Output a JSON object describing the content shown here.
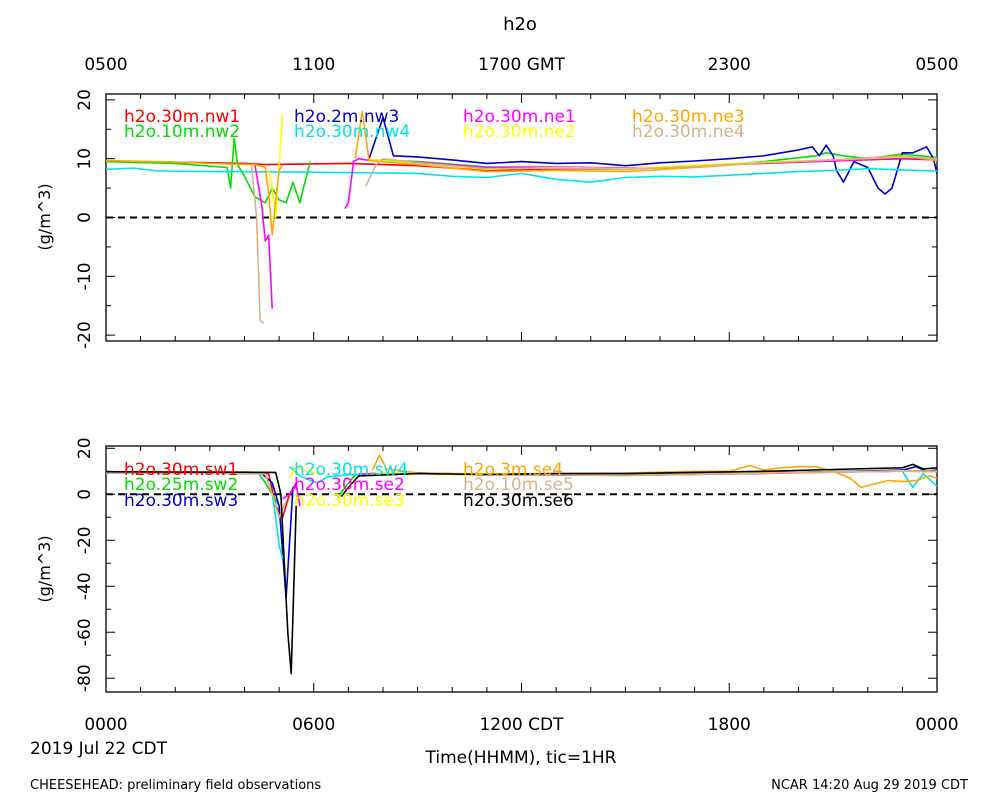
{
  "figure": {
    "title": "h2o",
    "date_label": "2019 Jul 22 CDT",
    "footer_left": "CHEESEHEAD: preliminary field observations",
    "footer_right": "NCAR 14:20 Aug 29 2019 CDT",
    "xlabel": "Time(HHMM), tic=1HR",
    "top_axis": {
      "ticks": [
        {
          "hour": 0,
          "label": "0500"
        },
        {
          "hour": 6,
          "label": "1100"
        },
        {
          "hour": 12,
          "label": "1700 GMT"
        },
        {
          "hour": 18,
          "label": "2300"
        },
        {
          "hour": 24,
          "label": "0500"
        }
      ]
    },
    "bottom_axis": {
      "ticks": [
        {
          "hour": 0,
          "label": "0000"
        },
        {
          "hour": 6,
          "label": "0600"
        },
        {
          "hour": 12,
          "label": "1200 CDT"
        },
        {
          "hour": 18,
          "label": "1800"
        },
        {
          "hour": 24,
          "label": "0000"
        }
      ]
    }
  },
  "chart_data": [
    {
      "type": "line",
      "xlim": [
        0,
        24
      ],
      "ylim": [
        -21,
        21
      ],
      "yticks": [
        20,
        10,
        0,
        -10,
        -20
      ],
      "ylabel": "(g/m^3)",
      "zero_line": true,
      "series": [
        {
          "name": "h2o.30m.nw1",
          "color": "#ff0000",
          "x": [
            0,
            2,
            4,
            4.6,
            7,
            9,
            11,
            13,
            15,
            17,
            19,
            21,
            23,
            24
          ],
          "y": [
            9.6,
            9.4,
            9.2,
            9,
            9.2,
            8.8,
            8,
            8.3,
            8.2,
            8.8,
            9.2,
            9.6,
            10,
            9.8
          ]
        },
        {
          "name": "h2o.10m.nw2",
          "color": "#00dd00",
          "x": [
            0,
            2,
            3.5,
            3.6,
            3.7,
            3.8,
            4,
            4.3,
            4.6,
            4.8,
            5,
            5.2,
            5.4,
            5.6,
            5.7,
            5.9
          ],
          "y": [
            9.5,
            9.2,
            8.5,
            5,
            13.5,
            9,
            7,
            3.5,
            2.5,
            5,
            3,
            2.5,
            6,
            2.5,
            5,
            9.5
          ]
        },
        {
          "name": "h2o.10m.nw2",
          "color": "#00dd00",
          "x": [
            7.6,
            9,
            11,
            13,
            15,
            17,
            19,
            20.5,
            20.8,
            21.3,
            22,
            23,
            24
          ],
          "y": [
            9.8,
            9.5,
            8.6,
            8.5,
            8.3,
            8.6,
            9.5,
            10.5,
            11,
            10.5,
            10,
            10.8,
            10.2
          ]
        },
        {
          "name": "h2o.2m.nw3",
          "color": "#0000cc",
          "x": [
            7.6,
            8,
            8.3,
            9,
            10,
            11,
            12,
            13,
            14,
            15,
            16,
            17,
            18,
            19,
            20,
            20.4,
            20.6,
            20.8,
            21,
            21.1,
            21.3,
            21.6,
            22,
            22.3,
            22.5,
            22.7,
            23,
            23.3,
            23.7,
            23.9,
            24
          ],
          "y": [
            10,
            17,
            10.5,
            10.3,
            9.8,
            9.2,
            9.5,
            9.2,
            9.3,
            8.8,
            9.3,
            9.6,
            10,
            10.5,
            11.5,
            12,
            10.5,
            12.3,
            10.5,
            8,
            6,
            9.5,
            8.5,
            5,
            4,
            5,
            11,
            11,
            12,
            10,
            7.5
          ]
        },
        {
          "name": "h2o.30m.nw4",
          "color": "#00e5e5",
          "x": [
            0,
            0.8,
            1.5,
            3,
            6,
            9,
            10,
            11,
            12,
            13,
            14,
            15,
            16,
            17,
            18,
            19,
            20,
            21,
            22,
            23,
            24
          ],
          "y": [
            8.2,
            8.4,
            7.9,
            7.8,
            7.7,
            7.5,
            7,
            6.8,
            7.5,
            6.5,
            6,
            6.8,
            7,
            6.9,
            7.2,
            7.5,
            7.8,
            8,
            8.3,
            8.1,
            7.9
          ]
        },
        {
          "name": "h2o.30m.ne1",
          "color": "#ff00ff",
          "x": [
            4.3,
            4.5,
            4.6,
            4.7,
            4.8
          ],
          "y": [
            9,
            2,
            -4,
            -3,
            -15.5
          ]
        },
        {
          "name": "h2o.30m.ne1",
          "color": "#ff00ff",
          "x": [
            6.9,
            7,
            7.15,
            7.3,
            7.5,
            9,
            11,
            13,
            15,
            17,
            19,
            21,
            23,
            24
          ],
          "y": [
            1.5,
            2.5,
            9.5,
            10,
            9.8,
            9.4,
            8.5,
            8.6,
            8.4,
            8.7,
            9.3,
            9.6,
            10.1,
            9.9
          ]
        },
        {
          "name": "h2o.30m.ne2",
          "color": "#ffff00",
          "x": [
            4.7,
            4.8,
            4.9,
            5,
            5.1
          ],
          "y": [
            8,
            5,
            0,
            9,
            17.5
          ]
        },
        {
          "name": "h2o.30m.ne2",
          "color": "#ffff00",
          "x": [
            7.6,
            9,
            11,
            13,
            15,
            17,
            19,
            21,
            23,
            24
          ],
          "y": [
            9.8,
            9.3,
            8.2,
            8.5,
            8.3,
            8.9,
            9.4,
            9.8,
            10.3,
            10
          ]
        },
        {
          "name": "h2o.30m.ne3",
          "color": "#ffa500",
          "x": [
            0,
            2,
            3.5,
            4.3,
            4.6,
            4.7,
            4.8,
            4.9,
            5,
            5.1
          ],
          "y": [
            9.7,
            9.4,
            9.1,
            9,
            8.5,
            4,
            -3,
            3,
            8,
            9
          ]
        },
        {
          "name": "h2o.30m.ne3",
          "color": "#ffa500",
          "x": [
            7.2,
            7.4,
            7.6,
            9,
            11,
            13,
            15,
            17,
            19,
            21,
            23,
            24
          ],
          "y": [
            10,
            18,
            9.7,
            9,
            7.8,
            8,
            7.8,
            8.5,
            9.3,
            9.8,
            10.5,
            9.7
          ]
        },
        {
          "name": "h2o.30m.ne4",
          "color": "#d2b48c",
          "x": [
            4.2,
            4.35,
            4.45,
            4.55
          ],
          "y": [
            9,
            0,
            -17.5,
            -18
          ]
        },
        {
          "name": "h2o.30m.ne4",
          "color": "#d2b48c",
          "x": [
            7.5,
            7.8,
            8,
            9,
            11,
            13,
            15,
            17,
            19,
            21,
            23,
            24
          ],
          "y": [
            5.3,
            9,
            10,
            9.3,
            8.3,
            8.4,
            8.2,
            8.7,
            9.3,
            9.8,
            10.4,
            10
          ]
        }
      ]
    },
    {
      "type": "line",
      "xlim": [
        0,
        24
      ],
      "ylim": [
        -86,
        21
      ],
      "yticks": [
        20,
        0,
        -20,
        -40,
        -60,
        -80
      ],
      "ylabel": "(g/m^3)",
      "zero_line": true,
      "series": [
        {
          "name": "h2o.30m.sw1",
          "color": "#ff0000",
          "x": [
            0,
            2,
            4,
            4.7,
            4.9,
            5.1,
            5.3,
            5.5
          ],
          "y": [
            9.6,
            9.5,
            9.3,
            9,
            -5,
            -10,
            0,
            5
          ]
        },
        {
          "name": "h2o.30m.sw1",
          "color": "#ff0000",
          "x": [
            7.6,
            9,
            11,
            13,
            15,
            17,
            19,
            21,
            23,
            24
          ],
          "y": [
            9,
            9.3,
            8.5,
            8.5,
            8.3,
            8.8,
            9.3,
            9.8,
            10.3,
            10
          ]
        },
        {
          "name": "h2o.25m.sw2",
          "color": "#00dd00",
          "x": [
            0,
            2,
            4.4,
            4.6,
            4.8,
            5
          ],
          "y": [
            9.4,
            9.3,
            9.1,
            5,
            0,
            -5
          ]
        },
        {
          "name": "h2o.25m.sw2",
          "color": "#00dd00",
          "x": [
            6.7,
            6.9,
            7.2,
            9,
            11,
            13,
            15,
            17,
            19,
            21,
            23,
            24
          ],
          "y": [
            -1.5,
            3,
            8.5,
            9.1,
            8.3,
            8.4,
            8.2,
            8.7,
            9.2,
            9.7,
            10.2,
            9.9
          ]
        },
        {
          "name": "h2o.30m.sw3",
          "color": "#0000cc",
          "x": [
            0,
            2,
            4.5,
            4.8,
            5,
            5.2,
            5.4
          ],
          "y": [
            9.3,
            9.2,
            9,
            5,
            -5,
            -45,
            3
          ]
        },
        {
          "name": "h2o.30m.sw3",
          "color": "#0000cc",
          "x": [
            7.5,
            9,
            11,
            13,
            15,
            17,
            19,
            21,
            23,
            23.4,
            23.7,
            24
          ],
          "y": [
            8.8,
            9.2,
            8.6,
            8.5,
            8.4,
            8.8,
            9.3,
            9.8,
            10.5,
            12,
            10,
            10.5
          ]
        },
        {
          "name": "h2o.30m.sw4",
          "color": "#00e5e5",
          "x": [
            4.8,
            4.9,
            5.0,
            5.1
          ],
          "y": [
            0,
            -10,
            -22,
            -28
          ]
        },
        {
          "name": "h2o.30m.sw4",
          "color": "#00e5e5",
          "x": [
            5.3,
            5.6,
            5.9,
            6.1,
            6.4,
            7,
            9,
            12,
            15,
            18,
            21,
            23,
            23.3,
            23.6,
            24
          ],
          "y": [
            12,
            8,
            6,
            5,
            7.5,
            8.5,
            9,
            8.5,
            8.2,
            8.8,
            9.8,
            10,
            3,
            9,
            3.5
          ]
        },
        {
          "name": "h2o.30m.se2",
          "color": "#ff00ff",
          "x": [
            5.1,
            5.3,
            5.5,
            5.6
          ],
          "y": [
            -2,
            0,
            4,
            -5
          ]
        },
        {
          "name": "h2o.30m.se2",
          "color": "#ff00ff",
          "x": [
            7.3,
            9,
            11,
            13,
            15,
            17,
            19,
            21,
            23,
            24
          ],
          "y": [
            8.8,
            9.1,
            8.4,
            8.4,
            8.3,
            8.7,
            9.1,
            9.6,
            10.1,
            9.8
          ]
        },
        {
          "name": "h2o.30m.se3",
          "color": "#ffff00",
          "x": [
            5.3,
            5.5,
            5.8,
            6.2
          ],
          "y": [
            7,
            12,
            10,
            9
          ]
        },
        {
          "name": "h2o.30m.se3",
          "color": "#ffff00",
          "x": [
            7.8,
            9,
            11,
            13,
            15,
            17,
            19,
            21,
            23,
            24
          ],
          "y": [
            9.5,
            9.1,
            8.3,
            8.5,
            8.3,
            8.8,
            9.3,
            9.7,
            10.2,
            10
          ]
        },
        {
          "name": "h2o.3m.se4",
          "color": "#ffa500",
          "x": [
            7.7,
            7.9,
            8.1,
            9,
            11,
            13,
            15,
            17,
            18,
            18.6,
            19,
            19.5,
            20,
            20.5,
            21,
            21.5,
            21.8,
            22.2,
            22.6,
            23,
            23.4,
            23.8,
            24
          ],
          "y": [
            10.5,
            17,
            11,
            9.3,
            8.8,
            9,
            9.2,
            10,
            10,
            12.5,
            10.5,
            11.5,
            12,
            12,
            10,
            7,
            3,
            4.5,
            6,
            5.5,
            6,
            8,
            7
          ]
        },
        {
          "name": "h2o.10m.se5",
          "color": "#d2b48c",
          "x": [
            0,
            2,
            4.6,
            4.8,
            5,
            5.2
          ],
          "y": [
            9.2,
            9.1,
            8.8,
            0,
            -10,
            -3
          ]
        },
        {
          "name": "h2o.10m.se5",
          "color": "#d2b48c",
          "x": [
            7.6,
            9,
            11,
            13,
            15,
            17,
            19,
            21,
            23,
            24
          ],
          "y": [
            8.7,
            9,
            8.5,
            8.5,
            8.3,
            8.7,
            9.2,
            9.6,
            10.1,
            9.8
          ]
        },
        {
          "name": "h2o.30m.se6",
          "color": "#000000",
          "x": [
            0,
            2,
            4,
            4.9,
            5.05,
            5.15,
            5.25,
            5.35,
            5.5
          ],
          "y": [
            9.8,
            9.7,
            9.6,
            9.5,
            0,
            -30,
            -60,
            -78,
            -2
          ]
        },
        {
          "name": "h2o.30m.se6",
          "color": "#000000",
          "x": [
            6.8,
            7,
            7.3,
            9,
            11,
            13,
            15,
            17,
            19,
            21,
            23,
            23.3,
            23.6,
            24
          ],
          "y": [
            -1,
            3,
            8,
            9,
            8.6,
            9,
            9,
            9.5,
            10,
            10.8,
            11.5,
            13,
            11,
            11.5
          ]
        }
      ]
    }
  ],
  "legends": [
    {
      "entries": [
        {
          "label": "h2o.30m.nw1",
          "color": "#ff0000"
        },
        {
          "label": "h2o.10m.nw2",
          "color": "#00dd00"
        },
        {
          "label": "h2o.2m.nw3",
          "color": "#0000cc"
        },
        {
          "label": "h2o.30m.nw4",
          "color": "#00e5e5"
        },
        {
          "label": "h2o.30m.ne1",
          "color": "#ff00ff"
        },
        {
          "label": "h2o.30m.ne2",
          "color": "#ffff00"
        },
        {
          "label": "h2o.30m.ne3",
          "color": "#ffa500"
        },
        {
          "label": "h2o.30m.ne4",
          "color": "#d2b48c"
        }
      ]
    },
    {
      "entries": [
        {
          "label": "h2o.30m.sw1",
          "color": "#ff0000"
        },
        {
          "label": "h2o.25m.sw2",
          "color": "#00dd00"
        },
        {
          "label": "h2o.30m.sw3",
          "color": "#0000cc"
        },
        {
          "label": "h2o.30m.sw4",
          "color": "#00e5e5"
        },
        {
          "label": "h2o.30m.se2",
          "color": "#ff00ff"
        },
        {
          "label": "h2o.30m.se3",
          "color": "#ffff00"
        },
        {
          "label": "h2o.3m.se4",
          "color": "#ffa500"
        },
        {
          "label": "h2o.10m.se5",
          "color": "#d2b48c"
        },
        {
          "label": "h2o.30m.se6",
          "color": "#000000"
        }
      ]
    }
  ]
}
